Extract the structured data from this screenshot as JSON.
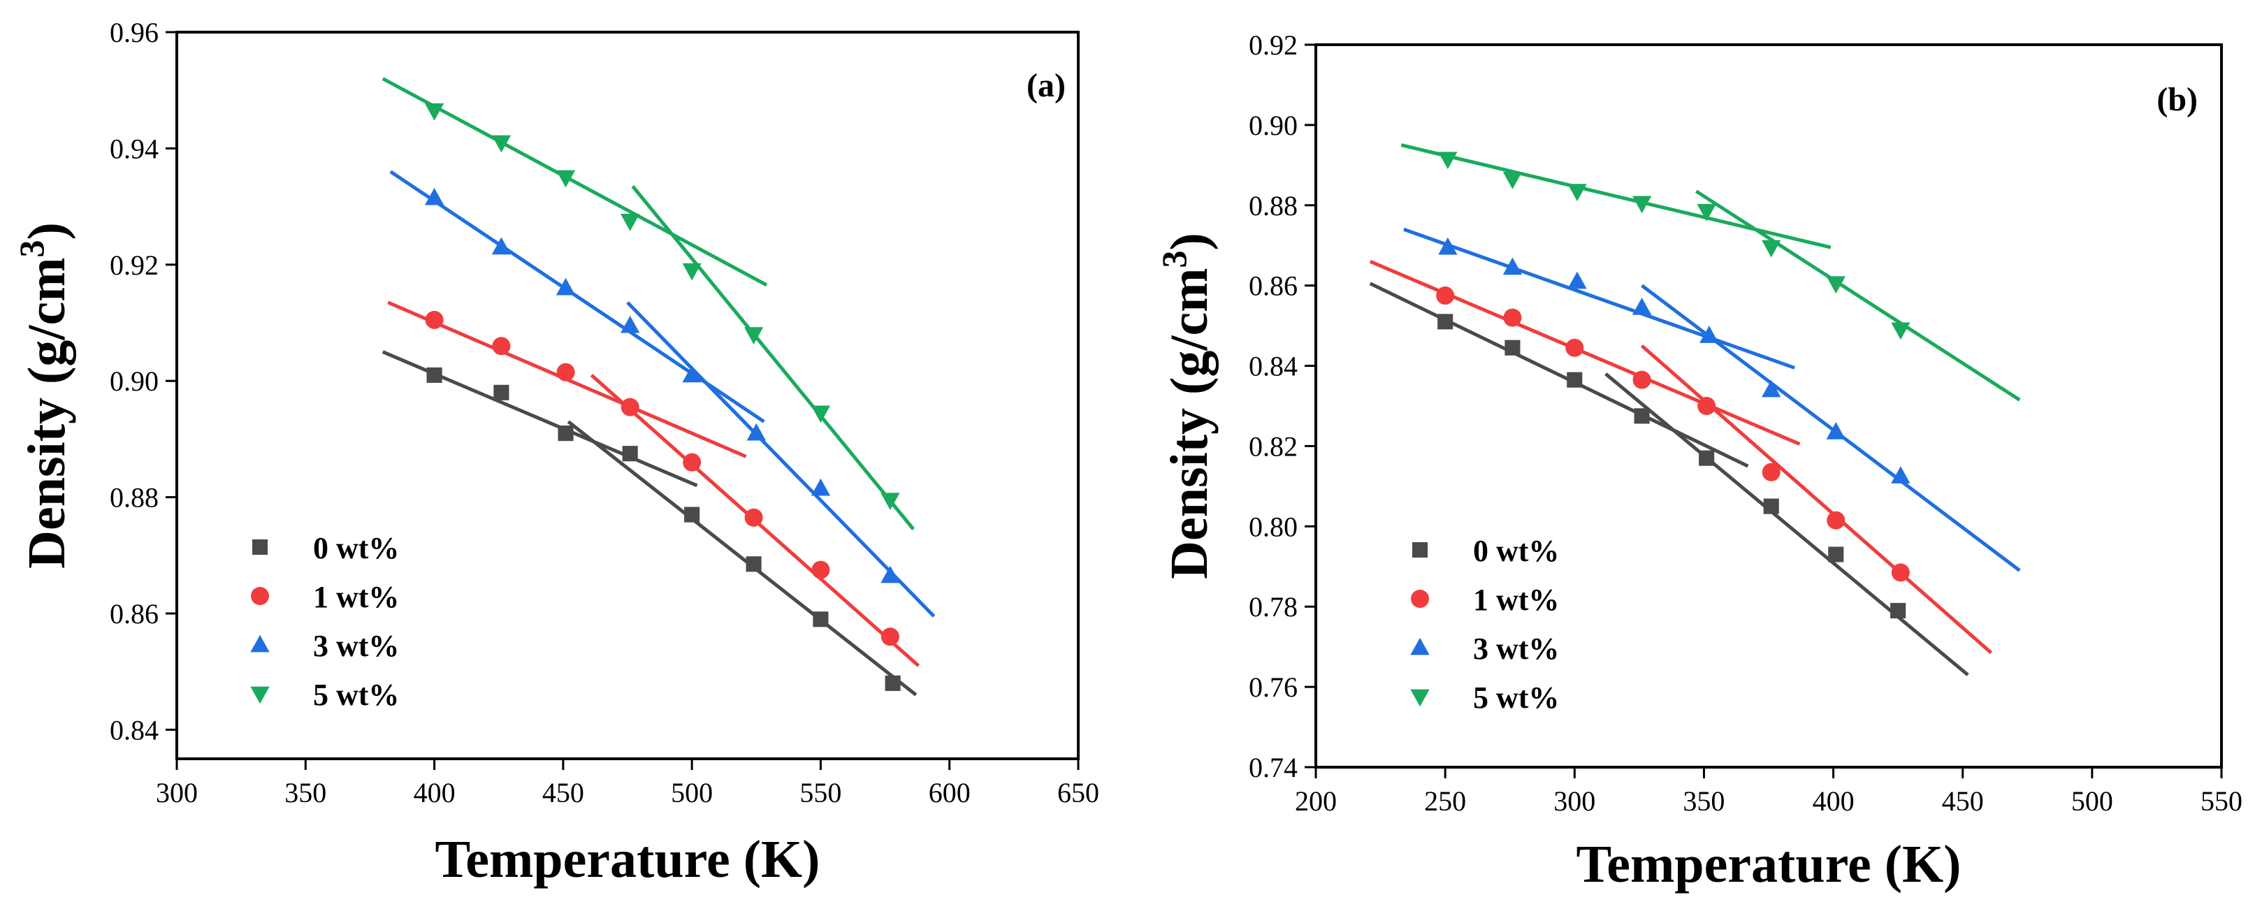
{
  "colors": {
    "0 wt%": "#4a4a4a",
    "1 wt%": "#f03c3c",
    "3 wt%": "#1f6fe0",
    "5 wt%": "#1aaa5c"
  },
  "chart_data": [
    {
      "type": "scatter",
      "panel_label": "(a)",
      "xlabel": "Temperature (K)",
      "ylabel": "Density (g/cm",
      "ylabel_sup": "3",
      "ylabel_close": ")",
      "xlim": [
        300,
        650
      ],
      "ylim": [
        0.835,
        0.96
      ],
      "x_ticks": [
        300,
        350,
        400,
        450,
        500,
        550,
        600,
        650
      ],
      "x_tick_labels": [
        "300",
        "350",
        "400",
        "450",
        "500",
        "550",
        "600",
        "650"
      ],
      "y_ticks": [
        0.84,
        0.86,
        0.88,
        0.9,
        0.92,
        0.94,
        0.96
      ],
      "y_tick_labels": [
        "0.84",
        "0.86",
        "0.88",
        "0.90",
        "0.92",
        "0.94",
        "0.96"
      ],
      "legend": [
        "0 wt%",
        "1 wt%",
        "3 wt%",
        "5 wt%"
      ],
      "legend_position": "bottom-left",
      "series": [
        {
          "name": "0 wt%",
          "marker": "square",
          "x": [
            400,
            426,
            451,
            476,
            500,
            524,
            550,
            578
          ],
          "y": [
            0.901,
            0.898,
            0.891,
            0.8875,
            0.877,
            0.8685,
            0.859,
            0.848
          ],
          "fits": [
            {
              "x": [
                380,
                502
              ],
              "y": [
                0.905,
                0.882
              ]
            },
            {
              "x": [
                452,
                587
              ],
              "y": [
                0.893,
                0.846
              ]
            }
          ]
        },
        {
          "name": "1 wt%",
          "marker": "circle",
          "x": [
            400,
            426,
            451,
            476,
            500,
            524,
            550,
            577
          ],
          "y": [
            0.9105,
            0.906,
            0.9015,
            0.8955,
            0.886,
            0.8765,
            0.8675,
            0.856
          ],
          "fits": [
            {
              "x": [
                382,
                521
              ],
              "y": [
                0.9135,
                0.887
              ]
            },
            {
              "x": [
                461,
                588
              ],
              "y": [
                0.901,
                0.851
              ]
            }
          ]
        },
        {
          "name": "3 wt%",
          "marker": "triangle-up",
          "x": [
            400,
            426,
            451,
            476,
            500,
            525,
            550,
            577
          ],
          "y": [
            0.9315,
            0.923,
            0.916,
            0.9095,
            0.901,
            0.891,
            0.8815,
            0.8665
          ],
          "fits": [
            {
              "x": [
                383,
                528
              ],
              "y": [
                0.936,
                0.893
              ]
            },
            {
              "x": [
                475,
                594
              ],
              "y": [
                0.9135,
                0.8595
              ]
            }
          ]
        },
        {
          "name": "5 wt%",
          "marker": "triangle-down",
          "x": [
            400,
            426,
            451,
            476,
            500,
            524,
            550,
            577
          ],
          "y": [
            0.9465,
            0.941,
            0.935,
            0.9275,
            0.919,
            0.908,
            0.8945,
            0.8795
          ],
          "fits": [
            {
              "x": [
                380,
                529
              ],
              "y": [
                0.952,
                0.9165
              ]
            },
            {
              "x": [
                477,
                586
              ],
              "y": [
                0.9335,
                0.8745
              ]
            }
          ]
        }
      ]
    },
    {
      "type": "scatter",
      "panel_label": "(b)",
      "xlabel": "Temperature (K)",
      "ylabel": "Density (g/cm",
      "ylabel_sup": "3",
      "ylabel_close": ")",
      "xlim": [
        200,
        550
      ],
      "ylim": [
        0.74,
        0.92
      ],
      "x_ticks": [
        200,
        250,
        300,
        350,
        400,
        450,
        500,
        550
      ],
      "x_tick_labels": [
        "200",
        "250",
        "300",
        "350",
        "400",
        "450",
        "500",
        "550"
      ],
      "y_ticks": [
        0.74,
        0.76,
        0.78,
        0.8,
        0.82,
        0.84,
        0.86,
        0.88,
        0.9,
        0.92
      ],
      "y_tick_labels": [
        "0.74",
        "0.76",
        "0.78",
        "0.80",
        "0.82",
        "0.84",
        "0.86",
        "0.88",
        "0.90",
        "0.92"
      ],
      "legend": [
        "0 wt%",
        "1 wt%",
        "3 wt%",
        "5 wt%"
      ],
      "legend_position": "bottom-left",
      "series": [
        {
          "name": "0 wt%",
          "marker": "square",
          "x": [
            250,
            276,
            300,
            326,
            351,
            376,
            401,
            425
          ],
          "y": [
            0.851,
            0.8445,
            0.8365,
            0.8275,
            0.817,
            0.805,
            0.793,
            0.779
          ],
          "fits": [
            {
              "x": [
                221,
                367
              ],
              "y": [
                0.8605,
                0.815
              ]
            },
            {
              "x": [
                312,
                452
              ],
              "y": [
                0.838,
                0.763
              ]
            }
          ]
        },
        {
          "name": "1 wt%",
          "marker": "circle",
          "x": [
            250,
            276,
            300,
            326,
            351,
            376,
            401,
            426
          ],
          "y": [
            0.8575,
            0.852,
            0.8445,
            0.8365,
            0.83,
            0.8135,
            0.8015,
            0.7885
          ],
          "fits": [
            {
              "x": [
                221,
                387
              ],
              "y": [
                0.866,
                0.8205
              ]
            },
            {
              "x": [
                326,
                461
              ],
              "y": [
                0.845,
                0.7685
              ]
            }
          ]
        },
        {
          "name": "3 wt%",
          "marker": "triangle-up",
          "x": [
            251,
            276,
            301,
            326,
            352,
            376,
            401,
            426
          ],
          "y": [
            0.8695,
            0.8645,
            0.861,
            0.8545,
            0.8475,
            0.834,
            0.8235,
            0.8125
          ],
          "fits": [
            {
              "x": [
                234,
                385
              ],
              "y": [
                0.874,
                0.8395
              ]
            },
            {
              "x": [
                326,
                472
              ],
              "y": [
                0.86,
                0.789
              ]
            }
          ]
        },
        {
          "name": "5 wt%",
          "marker": "triangle-down",
          "x": [
            251,
            276,
            301,
            326,
            351,
            376,
            401,
            426
          ],
          "y": [
            0.8915,
            0.8865,
            0.8835,
            0.8805,
            0.8785,
            0.8695,
            0.8605,
            0.849
          ],
          "fits": [
            {
              "x": [
                233,
                399
              ],
              "y": [
                0.895,
                0.8695
              ]
            },
            {
              "x": [
                347,
                472
              ],
              "y": [
                0.8835,
                0.8315
              ]
            }
          ]
        }
      ]
    }
  ]
}
